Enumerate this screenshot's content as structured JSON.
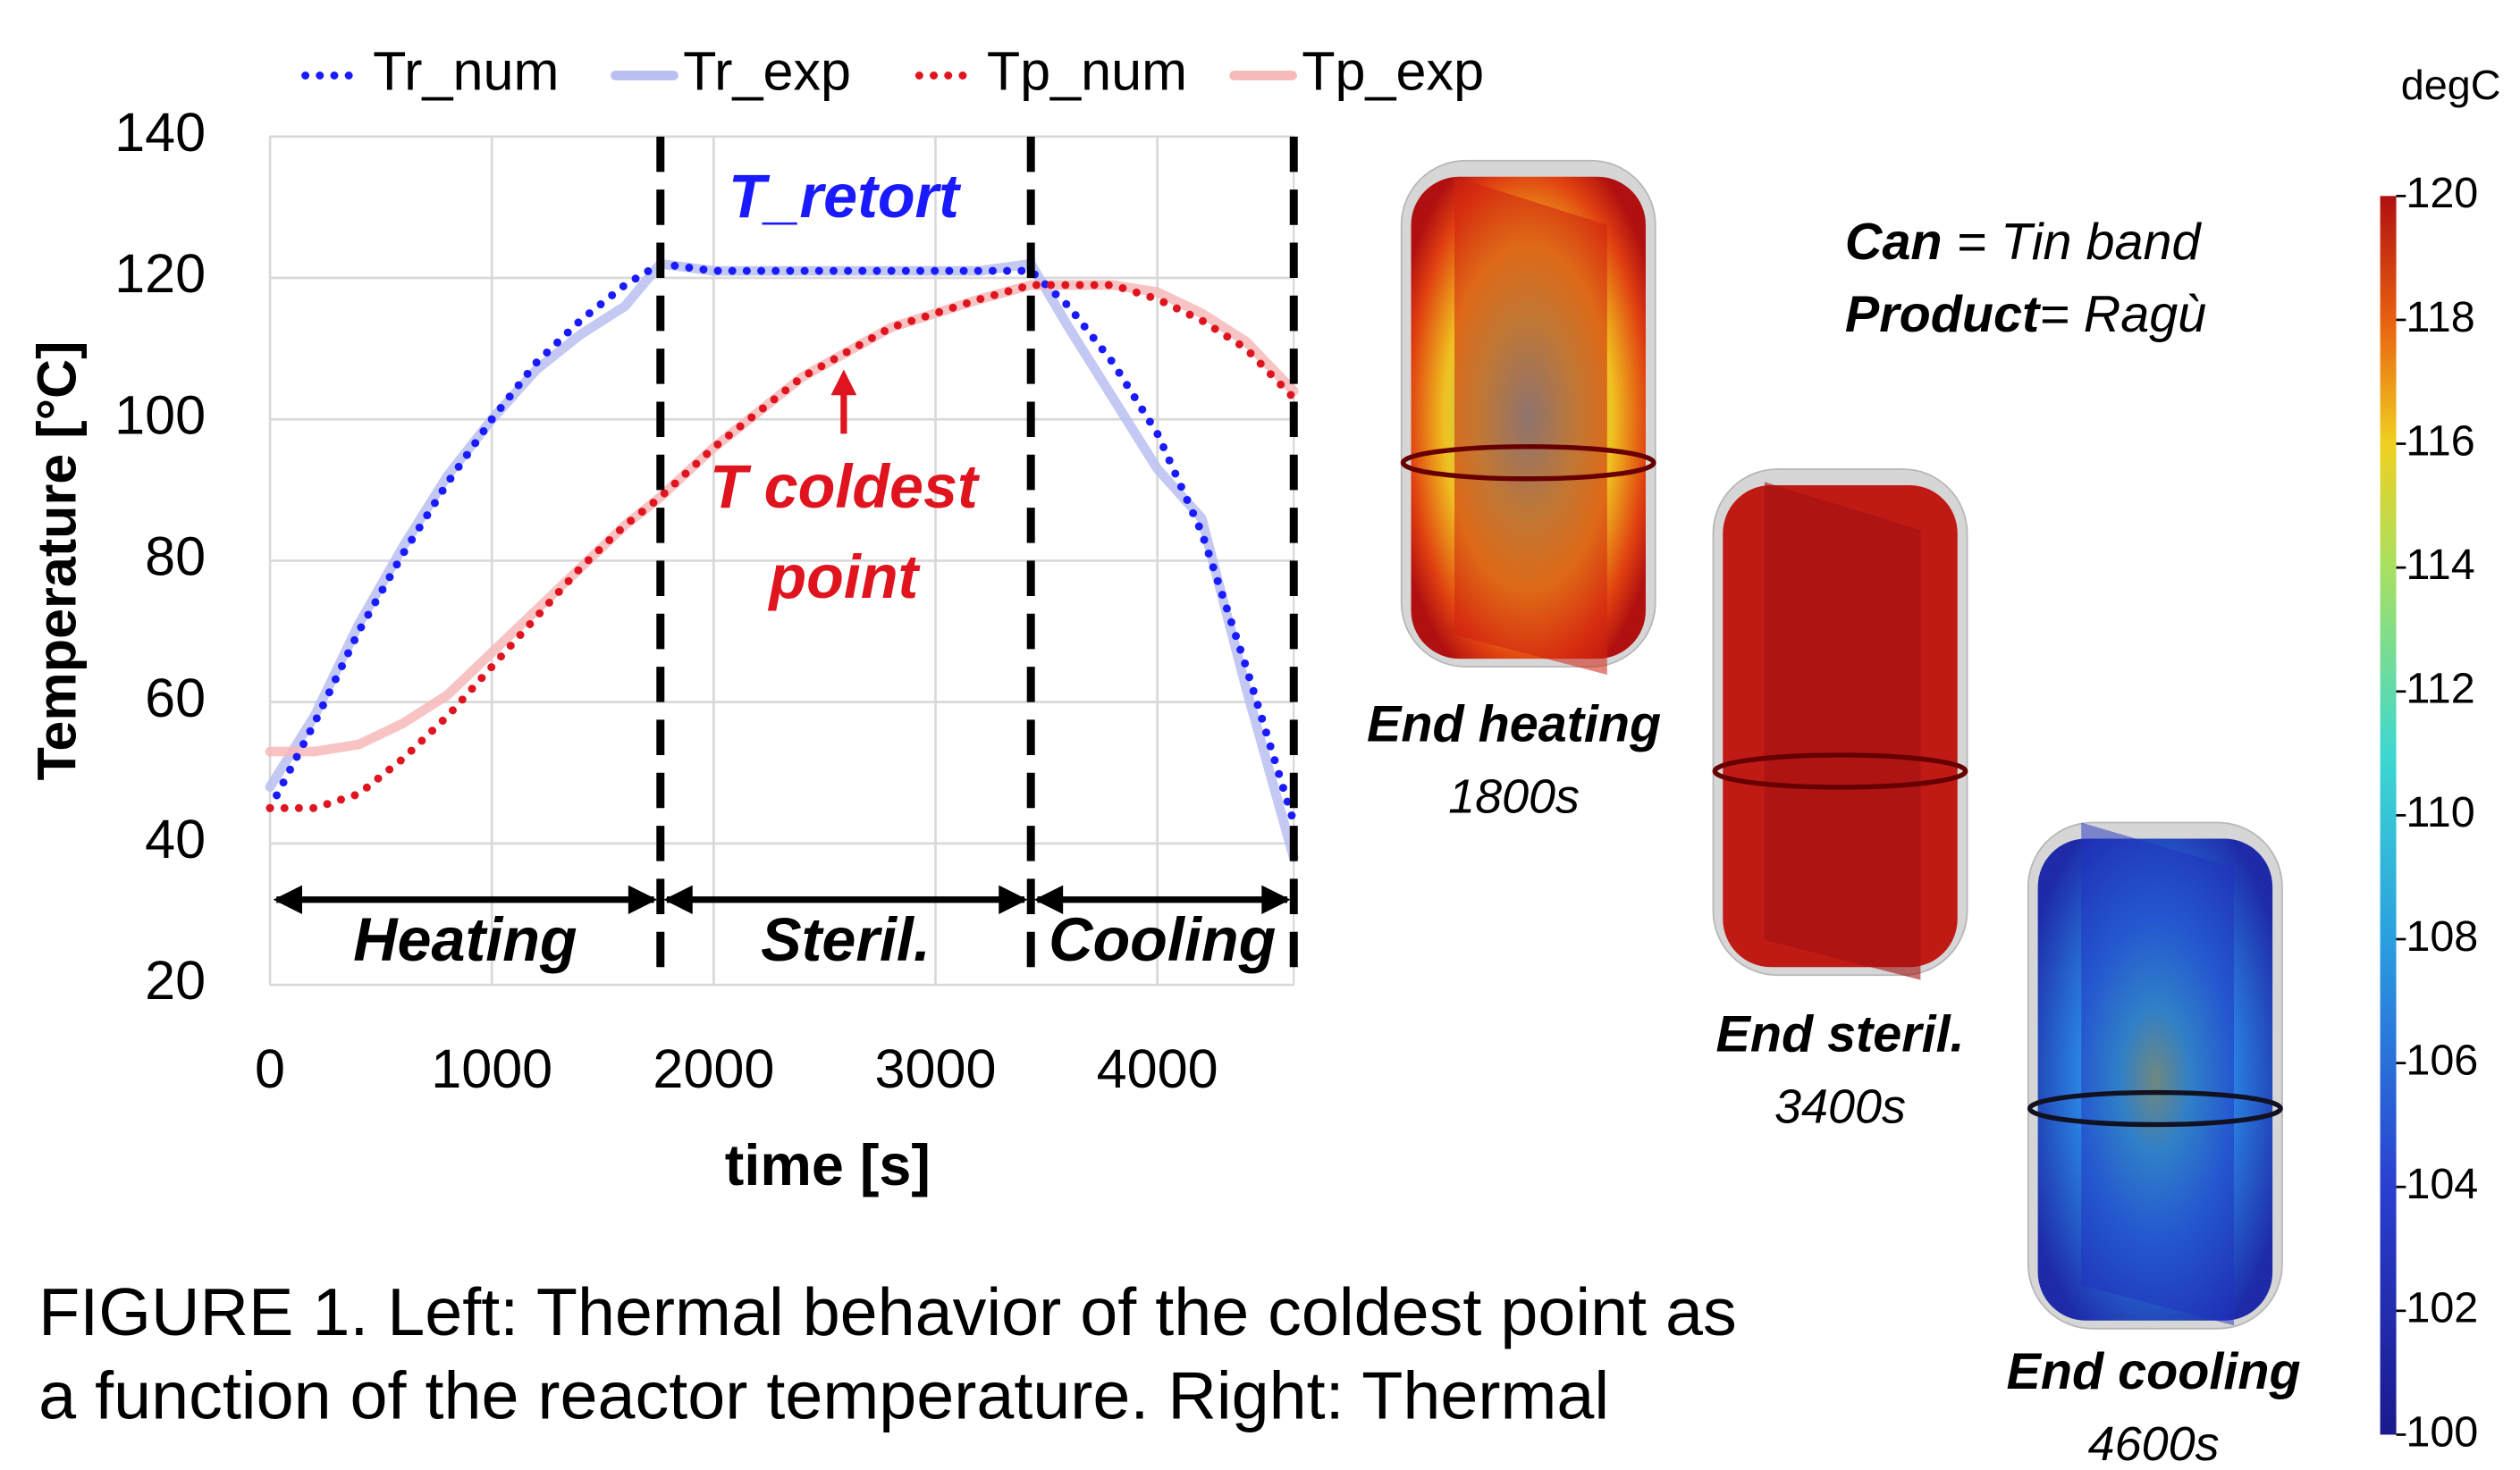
{
  "chart_data": {
    "type": "line",
    "x_label": "time [s]",
    "y_label": "Temperature [°C]",
    "xlim": [
      0,
      4615
    ],
    "ylim": [
      20,
      140
    ],
    "xticks": [
      0,
      1000,
      2000,
      3000,
      4000
    ],
    "yticks": [
      20,
      40,
      60,
      80,
      100,
      120,
      140
    ],
    "grid": true,
    "x": [
      0,
      200,
      400,
      600,
      800,
      1000,
      1200,
      1400,
      1600,
      1760,
      2000,
      2400,
      2800,
      3200,
      3430,
      3600,
      3800,
      4000,
      4200,
      4400,
      4615
    ],
    "series": [
      {
        "name": "Tr_num",
        "color": "#1a1aff",
        "style": "dotted",
        "values": [
          45,
          57,
          70,
          81,
          91,
          100,
          108,
          114,
          119,
          122,
          121,
          121,
          121,
          121,
          121,
          116,
          108,
          98,
          84,
          65,
          43
        ]
      },
      {
        "name": "Tr_exp",
        "color": "#b9bff0",
        "style": "solid",
        "values": [
          48,
          58,
          71,
          82,
          92,
          100,
          107,
          112,
          116,
          122,
          121,
          121,
          121,
          121,
          122,
          113,
          103,
          93,
          86,
          62,
          38
        ]
      },
      {
        "name": "Tp_num",
        "color": "#e0141e",
        "style": "dotted",
        "values": [
          45,
          45,
          47,
          52,
          58,
          65,
          72,
          79,
          85,
          89,
          96,
          106,
          113,
          117,
          119,
          119,
          119,
          117,
          114,
          110,
          103
        ]
      },
      {
        "name": "Tp_exp",
        "color": "#f7b9b9",
        "style": "solid",
        "values": [
          53,
          53,
          54,
          57,
          61,
          67,
          73,
          79,
          85,
          89,
          96,
          106,
          113,
          117,
          119,
          119,
          119,
          118,
          115,
          111,
          104
        ]
      }
    ],
    "phase_boundaries": [
      1760,
      3430,
      4615
    ],
    "phases": [
      "Heating",
      "Steril.",
      "Cooling"
    ],
    "annotations": {
      "retort": "T_retort",
      "coldest": [
        "T coldest",
        "point"
      ]
    }
  },
  "right_panel": {
    "material": {
      "can_key": "Can",
      "can_value": " = Tin band",
      "product_key": "Product",
      "product_value": "= Ragù"
    },
    "stages": [
      {
        "label": "End heating",
        "time": "1800s"
      },
      {
        "label": "End steril.",
        "time": "3400s"
      },
      {
        "label": "End cooling",
        "time": "4600s"
      }
    ],
    "colorbar": {
      "unit": "degC",
      "range": [
        100,
        120
      ],
      "ticks": [
        100,
        102,
        104,
        106,
        108,
        110,
        112,
        114,
        116,
        118,
        120
      ]
    }
  },
  "caption": [
    "FIGURE 1. Left: Thermal behavior of the coldest point as",
    "a function of the reactor temperature. Right: Thermal"
  ]
}
